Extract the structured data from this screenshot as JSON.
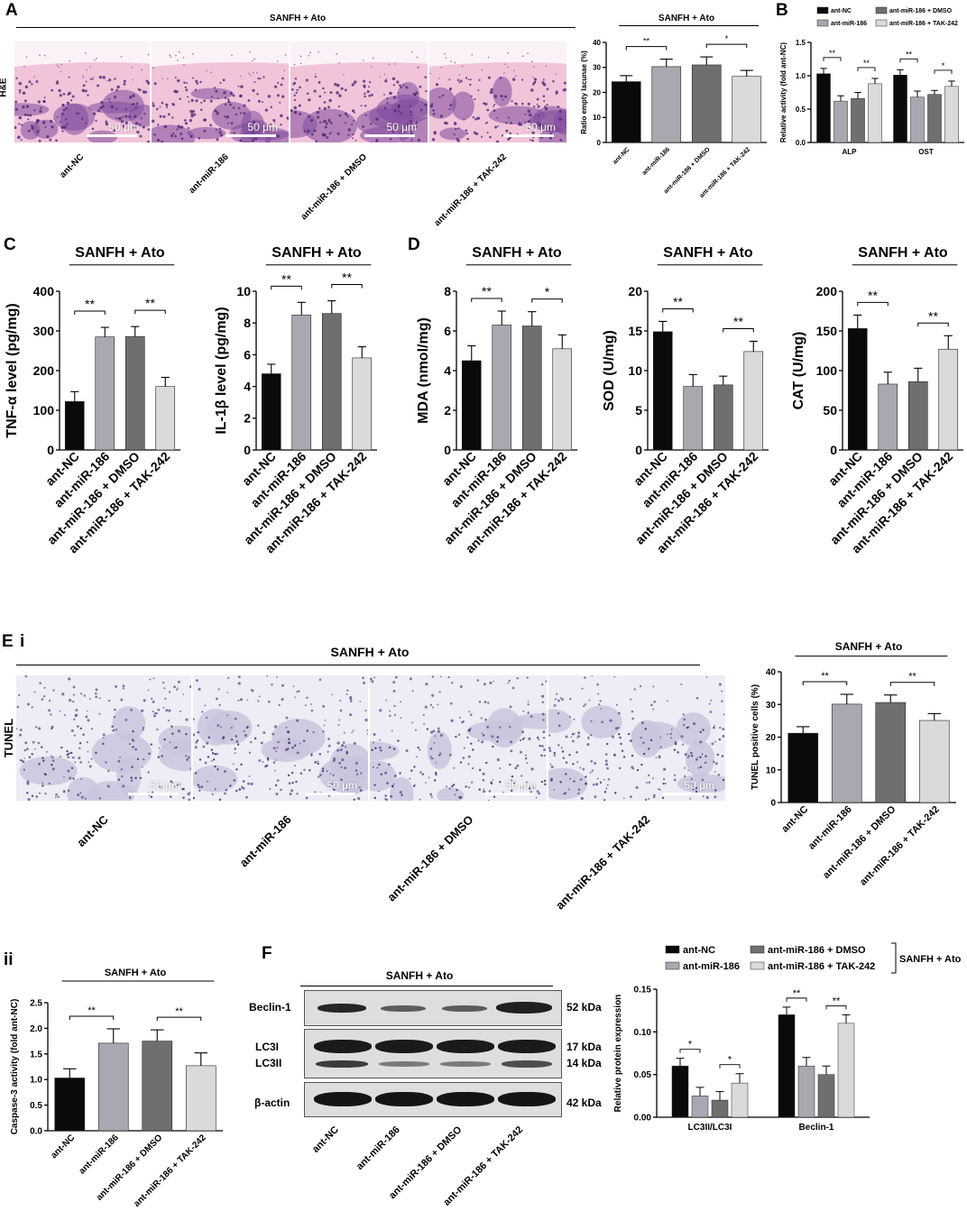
{
  "panel_labels": {
    "A": "A",
    "B": "B",
    "C": "C",
    "D": "D",
    "E": "E",
    "Ei": "i",
    "Eii": "ii",
    "F": "F"
  },
  "group_title": "SANFH + Ato",
  "groups": [
    "ant-NC",
    "ant-miR-186",
    "ant-miR-186 + DMSO",
    "ant-miR-186 + TAK-242"
  ],
  "colors": {
    "g1": "#0a0a0a",
    "g2": "#a8a8b0",
    "g3": "#6f6f6f",
    "g4": "#dadada"
  },
  "he": {
    "row_label": "H&E",
    "scale_label": "50 μm"
  },
  "tunel": {
    "row_label": "TUNEL",
    "scale_label": "50 μm"
  },
  "western": {
    "rows": [
      {
        "label": "Beclin-1",
        "kda": "52 kDa"
      },
      {
        "label": "LC3I",
        "kda": "17 kDa"
      },
      {
        "label": "LC3II",
        "kda": "14 kDa"
      },
      {
        "label": "β-actin",
        "kda": "42 kDa"
      }
    ]
  },
  "chart_data": [
    {
      "id": "empty",
      "type": "bar",
      "title": "SANFH + Ato",
      "ylabel": "Ratio empty lacunae (%)",
      "ylim": [
        0,
        40
      ],
      "ticks": [
        0,
        10,
        20,
        30,
        40
      ],
      "categories": [
        "ant-NC",
        "ant-miR-186",
        "ant-miR-186 + DMSO",
        "ant-miR-186 + TAK-242"
      ],
      "values": [
        24.3,
        30.3,
        31.0,
        26.4
      ],
      "errors": [
        2.4,
        3.0,
        3.2,
        2.4
      ],
      "sig": [
        {
          "from": 0,
          "to": 1,
          "label": "**"
        },
        {
          "from": 2,
          "to": 3,
          "label": "*"
        }
      ]
    },
    {
      "id": "alp",
      "type": "bar",
      "title": "",
      "ylabel": "Relative activity (fold ant-NC)",
      "ylim": [
        0,
        1.5
      ],
      "ticks": [
        0.0,
        0.5,
        1.0,
        1.5
      ],
      "categories": [
        "ALP",
        "OST"
      ],
      "series": [
        {
          "name": "ant-NC",
          "values": [
            1.03,
            1.01
          ],
          "errors": [
            0.08,
            0.08
          ]
        },
        {
          "name": "ant-miR-186",
          "values": [
            0.62,
            0.68
          ],
          "errors": [
            0.08,
            0.09
          ]
        },
        {
          "name": "ant-miR-186 + DMSO",
          "values": [
            0.66,
            0.72
          ],
          "errors": [
            0.09,
            0.06
          ]
        },
        {
          "name": "ant-miR-186 + TAK-242",
          "values": [
            0.88,
            0.84
          ],
          "errors": [
            0.08,
            0.08
          ]
        }
      ],
      "legend": "top",
      "sig": [
        {
          "cat": 0,
          "from": 0,
          "to": 1,
          "label": "**"
        },
        {
          "cat": 0,
          "from": 2,
          "to": 3,
          "label": "**"
        },
        {
          "cat": 1,
          "from": 0,
          "to": 1,
          "label": "**"
        },
        {
          "cat": 1,
          "from": 2,
          "to": 3,
          "label": "*"
        }
      ]
    },
    {
      "id": "tnf",
      "type": "bar",
      "title": "SANFH + Ato",
      "ylabel": "TNF-α level (pg/mg)",
      "ylim": [
        0,
        400
      ],
      "ticks": [
        0,
        100,
        200,
        300,
        400
      ],
      "categories": [
        "ant-NC",
        "ant-miR-186",
        "ant-miR-186 + DMSO",
        "ant-miR-186 + TAK-242"
      ],
      "values": [
        122,
        285,
        286,
        160
      ],
      "errors": [
        25,
        24,
        25,
        23
      ],
      "sig": [
        {
          "from": 0,
          "to": 1,
          "label": "**"
        },
        {
          "from": 2,
          "to": 3,
          "label": "**"
        }
      ]
    },
    {
      "id": "il1b",
      "type": "bar",
      "title": "SANFH + Ato",
      "ylabel": "IL-1β level (pg/mg)",
      "ylim": [
        0,
        10
      ],
      "ticks": [
        0,
        2,
        4,
        6,
        8,
        10
      ],
      "categories": [
        "ant-NC",
        "ant-miR-186",
        "ant-miR-186 + DMSO",
        "ant-miR-186 + TAK-242"
      ],
      "values": [
        4.8,
        8.5,
        8.6,
        5.8
      ],
      "errors": [
        0.6,
        0.8,
        0.8,
        0.7
      ],
      "sig": [
        {
          "from": 0,
          "to": 1,
          "label": "**"
        },
        {
          "from": 2,
          "to": 3,
          "label": "**"
        },
        {
          "from": 0,
          "to": 3,
          "label": ""
        }
      ]
    },
    {
      "id": "mda",
      "type": "bar",
      "title": "SANFH + Ato",
      "ylabel": "MDA (nmol/mg)",
      "ylim": [
        0,
        8
      ],
      "ticks": [
        0,
        2,
        4,
        6,
        8
      ],
      "categories": [
        "ant-NC",
        "ant-miR-186",
        "ant-miR-186 + DMSO",
        "ant-miR-186 + TAK-242"
      ],
      "values": [
        4.5,
        6.3,
        6.25,
        5.1
      ],
      "errors": [
        0.75,
        0.7,
        0.72,
        0.7
      ],
      "sig": [
        {
          "from": 0,
          "to": 1,
          "label": "**"
        },
        {
          "from": 2,
          "to": 3,
          "label": "*"
        }
      ]
    },
    {
      "id": "sod",
      "type": "bar",
      "title": "SANFH + Ato",
      "ylabel": "SOD (U/mg)",
      "ylim": [
        0,
        20
      ],
      "ticks": [
        0,
        5,
        10,
        15,
        20
      ],
      "categories": [
        "ant-NC",
        "ant-miR-186",
        "ant-miR-186 + DMSO",
        "ant-miR-186 + TAK-242"
      ],
      "values": [
        14.9,
        8.0,
        8.2,
        12.4
      ],
      "errors": [
        1.3,
        1.5,
        1.1,
        1.3
      ],
      "sig": [
        {
          "from": 0,
          "to": 1,
          "label": "**"
        },
        {
          "from": 2,
          "to": 3,
          "label": "**"
        }
      ]
    },
    {
      "id": "cat",
      "type": "bar",
      "title": "SANFH + Ato",
      "ylabel": "CAT (U/mg)",
      "ylim": [
        0,
        200
      ],
      "ticks": [
        0,
        50,
        100,
        150,
        200
      ],
      "categories": [
        "ant-NC",
        "ant-miR-186",
        "ant-miR-186 + DMSO",
        "ant-miR-186 + TAK-242"
      ],
      "values": [
        153,
        83,
        86,
        127
      ],
      "errors": [
        17,
        15,
        17,
        17
      ],
      "sig": [
        {
          "from": 0,
          "to": 1,
          "label": "**"
        },
        {
          "from": 2,
          "to": 3,
          "label": "**"
        }
      ]
    },
    {
      "id": "tunel",
      "type": "bar",
      "title": "SANFH + Ato",
      "ylabel": "TUNEL positive cells (%)",
      "ylim": [
        0,
        40
      ],
      "ticks": [
        0,
        10,
        20,
        30,
        40
      ],
      "categories": [
        "ant-NC",
        "ant-miR-186",
        "ant-miR-186 + DMSO",
        "ant-miR-186 + TAK-242"
      ],
      "values": [
        21.2,
        30.1,
        30.6,
        25.1
      ],
      "errors": [
        2.0,
        3.0,
        2.3,
        2.1
      ],
      "sig": [
        {
          "from": 0,
          "to": 1,
          "label": "**"
        },
        {
          "from": 2,
          "to": 3,
          "label": "**"
        }
      ]
    },
    {
      "id": "casp",
      "type": "bar",
      "title": "SANFH + Ato",
      "ylabel": "Caspase-3 activity (fold ant-NC)",
      "ylim": [
        0,
        2.5
      ],
      "ticks": [
        0.0,
        0.5,
        1.0,
        1.5,
        2.0,
        2.5
      ],
      "categories": [
        "ant-NC",
        "ant-miR-186",
        "ant-miR-186 + DMSO",
        "ant-miR-186 + TAK-242"
      ],
      "values": [
        1.03,
        1.71,
        1.75,
        1.27
      ],
      "errors": [
        0.18,
        0.28,
        0.22,
        0.25
      ],
      "sig": [
        {
          "from": 0,
          "to": 1,
          "label": "**"
        },
        {
          "from": 2,
          "to": 3,
          "label": "**"
        }
      ]
    },
    {
      "id": "prot",
      "type": "bar",
      "title": "",
      "ylabel": "Relative protein expression",
      "ylim": [
        0,
        0.15
      ],
      "ticks": [
        0.0,
        0.05,
        0.1,
        0.15
      ],
      "categories": [
        "LC3II/LC3I",
        "Beclin-1"
      ],
      "series": [
        {
          "name": "ant-NC",
          "values": [
            0.06,
            0.12
          ],
          "errors": [
            0.009,
            0.009
          ]
        },
        {
          "name": "ant-miR-186",
          "values": [
            0.025,
            0.06
          ],
          "errors": [
            0.01,
            0.01
          ]
        },
        {
          "name": "ant-miR-186 + DMSO",
          "values": [
            0.02,
            0.05
          ],
          "errors": [
            0.01,
            0.01
          ]
        },
        {
          "name": "ant-miR-186 + TAK-242",
          "values": [
            0.04,
            0.11
          ],
          "errors": [
            0.011,
            0.01
          ]
        }
      ],
      "legend": "top",
      "legend_group": "SANFH + Ato",
      "sig": [
        {
          "cat": 0,
          "from": 0,
          "to": 1,
          "label": "*"
        },
        {
          "cat": 0,
          "from": 2,
          "to": 3,
          "label": "*"
        },
        {
          "cat": 1,
          "from": 0,
          "to": 1,
          "label": "**"
        },
        {
          "cat": 1,
          "from": 2,
          "to": 3,
          "label": "**"
        }
      ]
    }
  ]
}
